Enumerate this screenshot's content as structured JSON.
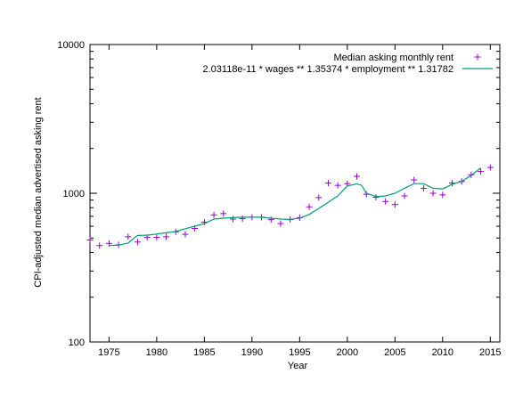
{
  "chart_data": {
    "type": "line",
    "xlabel": "Year",
    "ylabel": "CPI-adjusted median advertised asking rent",
    "xlim": [
      1973,
      2016
    ],
    "ylim": [
      100,
      10000
    ],
    "y_scale": "log",
    "grid": false,
    "legend_position": "top-right",
    "x_ticks": [
      1975,
      1980,
      1985,
      1990,
      1995,
      2000,
      2005,
      2010,
      2015
    ],
    "y_ticks": [
      {
        "value": 100,
        "label": "100"
      },
      {
        "value": 1000,
        "label": "1000"
      },
      {
        "value": 10000,
        "label": "10000"
      }
    ],
    "series": [
      {
        "name": "Median asking monthly rent",
        "style": "points",
        "marker": "+",
        "color": "#9400d3",
        "x": [
          1973,
          1974,
          1975,
          1976,
          1977,
          1978,
          1979,
          1980,
          1981,
          1982,
          1983,
          1984,
          1985,
          1986,
          1987,
          1988,
          1989,
          1990,
          1991,
          1992,
          1993,
          1994,
          1995,
          1996,
          1997,
          1998,
          1999,
          2000,
          2001,
          2002,
          2003,
          2004,
          2005,
          2006,
          2007,
          2008,
          2009,
          2010,
          2011,
          2012,
          2013,
          2014,
          2015
        ],
        "y": [
          485,
          445,
          460,
          450,
          510,
          470,
          505,
          505,
          510,
          550,
          530,
          580,
          640,
          715,
          730,
          670,
          675,
          690,
          690,
          665,
          625,
          665,
          685,
          810,
          935,
          1170,
          1130,
          1160,
          1300,
          985,
          940,
          880,
          840,
          960,
          1230,
          1080,
          1000,
          975,
          1170,
          1200,
          1330,
          1400,
          1490
        ]
      },
      {
        "name": "2.03118e-11 * wages ** 1.35374 * employment ** 1.31782",
        "style": "line",
        "color": "#009e73",
        "x": [
          1975,
          1976,
          1977,
          1977.7,
          1978,
          1979,
          1980,
          1981,
          1982,
          1983,
          1984,
          1985,
          1986,
          1987,
          1988,
          1989,
          1990,
          1991,
          1992,
          1993,
          1994,
          1995,
          1996,
          1997,
          1998,
          1999,
          2000,
          2001,
          2001.5,
          2002,
          2003,
          2004,
          2005,
          2006,
          2007,
          2008,
          2009,
          2010,
          2011,
          2012,
          2013,
          2014
        ],
        "y": [
          445,
          448,
          462,
          505,
          520,
          522,
          532,
          542,
          553,
          578,
          600,
          625,
          670,
          680,
          685,
          690,
          690,
          690,
          680,
          670,
          668,
          680,
          720,
          790,
          870,
          960,
          1120,
          1155,
          1130,
          1000,
          950,
          960,
          1000,
          1080,
          1160,
          1160,
          1080,
          1070,
          1150,
          1200,
          1320,
          1480
        ]
      }
    ]
  }
}
